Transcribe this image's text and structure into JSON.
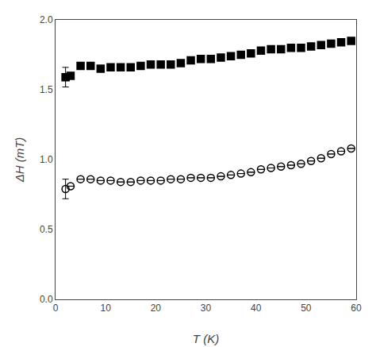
{
  "chart_data": {
    "type": "scatter",
    "title": "",
    "xlabel": "T (K)",
    "ylabel": "ΔH (mT)",
    "xlim": [
      0,
      60
    ],
    "ylim": [
      0.0,
      2.0
    ],
    "xticks": [
      0,
      10,
      20,
      30,
      40,
      50,
      60
    ],
    "yticks": [
      {
        "value": 0.0,
        "label": "0.0"
      },
      0.5,
      {
        "value": 1.0,
        "label": "1.0"
      },
      1.5,
      {
        "value": 2.0,
        "label": "2.0"
      }
    ],
    "grid": false,
    "series": [
      {
        "marker": "square",
        "color": "#000000",
        "x": [
          2,
          3,
          5,
          7,
          9,
          11,
          13,
          15,
          17,
          19,
          21,
          23,
          25,
          27,
          29,
          31,
          33,
          35,
          37,
          39,
          41,
          43,
          45,
          47,
          49,
          51,
          53,
          55,
          57,
          59
        ],
        "values": [
          1.59,
          1.6,
          1.67,
          1.67,
          1.65,
          1.66,
          1.66,
          1.66,
          1.67,
          1.68,
          1.68,
          1.68,
          1.69,
          1.71,
          1.72,
          1.72,
          1.73,
          1.74,
          1.75,
          1.76,
          1.78,
          1.79,
          1.79,
          1.8,
          1.8,
          1.81,
          1.82,
          1.83,
          1.84,
          1.85
        ],
        "yerr": [
          0.07,
          null,
          null,
          null,
          null,
          null,
          null,
          null,
          null,
          null,
          null,
          null,
          null,
          null,
          null,
          null,
          null,
          null,
          null,
          null,
          null,
          null,
          null,
          null,
          null,
          null,
          null,
          null,
          null,
          null
        ]
      },
      {
        "marker": "circle-open",
        "color": "#000000",
        "x": [
          2,
          3,
          5,
          7,
          9,
          11,
          13,
          15,
          17,
          19,
          21,
          23,
          25,
          27,
          29,
          31,
          33,
          35,
          37,
          39,
          41,
          43,
          45,
          47,
          49,
          51,
          53,
          55,
          57,
          59
        ],
        "values": [
          0.79,
          0.81,
          0.86,
          0.86,
          0.85,
          0.85,
          0.84,
          0.84,
          0.85,
          0.85,
          0.85,
          0.86,
          0.86,
          0.87,
          0.87,
          0.87,
          0.88,
          0.89,
          0.9,
          0.91,
          0.93,
          0.94,
          0.95,
          0.96,
          0.97,
          0.99,
          1.01,
          1.04,
          1.06,
          1.08
        ],
        "yerr": [
          0.07,
          null,
          null,
          null,
          null,
          null,
          null,
          null,
          null,
          null,
          null,
          null,
          null,
          null,
          null,
          null,
          null,
          null,
          null,
          null,
          null,
          null,
          null,
          null,
          null,
          null,
          null,
          null,
          null,
          null
        ]
      }
    ]
  }
}
